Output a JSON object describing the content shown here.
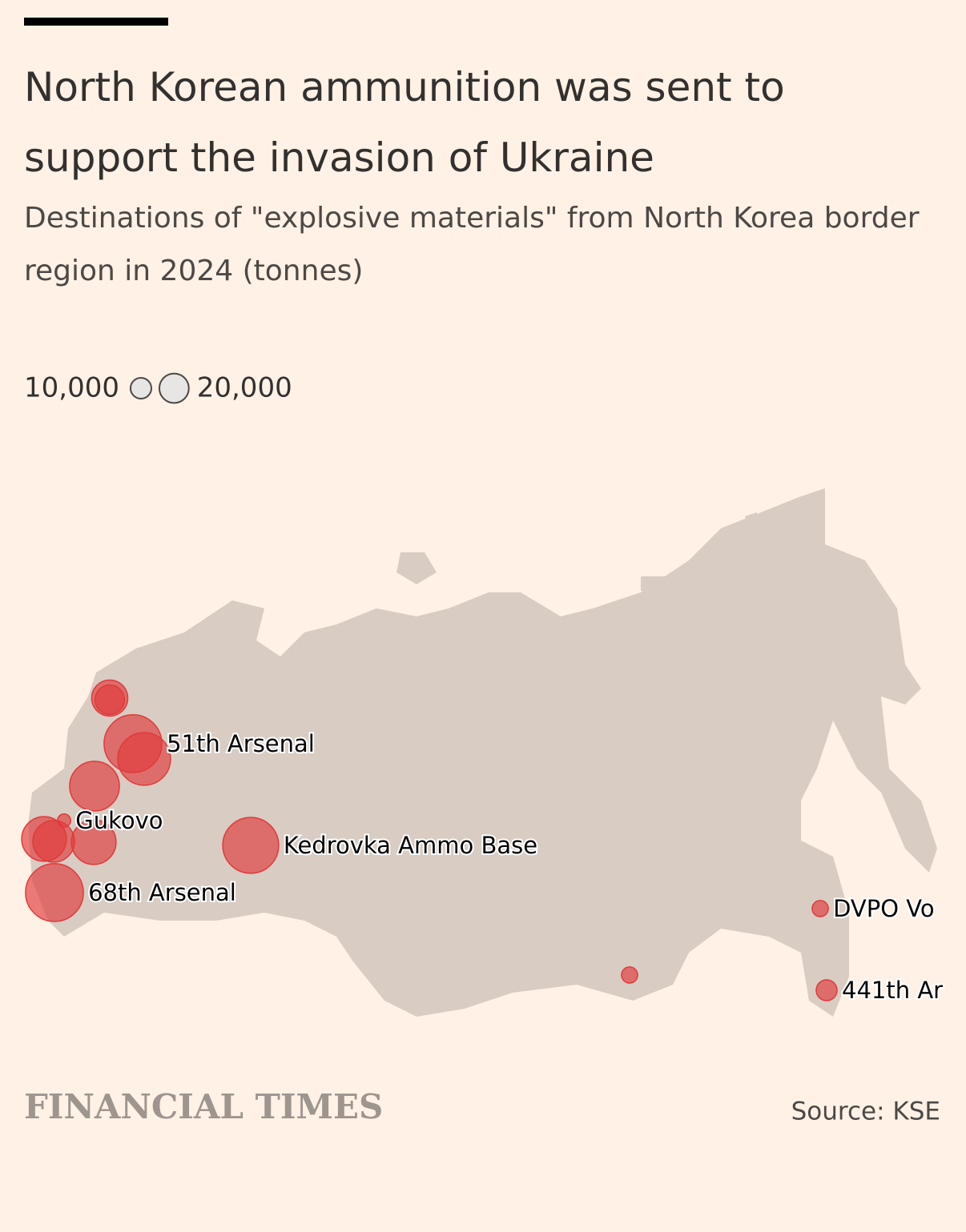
{
  "chart_data": {
    "type": "bubble-map",
    "title": "North Korean ammunition was sent to support the invasion of Ukraine",
    "subtitle": "Destinations of \"explosive materials\" from North Korea border region in 2024 (tonnes)",
    "size_legend": [
      {
        "value": 10000,
        "label": "10,000"
      },
      {
        "value": 20000,
        "label": "20,000"
      }
    ],
    "color": "#e03a3a",
    "categories": [
      null,
      null,
      "51th Arsenal",
      null,
      null,
      "Gukovo",
      null,
      null,
      null,
      "68th Arsenal",
      "Kedrovka Ammo Base",
      "DVPO Vo",
      null,
      "441th Ar"
    ],
    "values": [
      30000,
      20000,
      77000,
      64000,
      57000,
      4000,
      46000,
      40000,
      46000,
      77000,
      72000,
      6000,
      6000,
      10000
    ]
  },
  "footer": {
    "brand": "FINANCIAL TIMES",
    "source": "Source: KSE"
  }
}
